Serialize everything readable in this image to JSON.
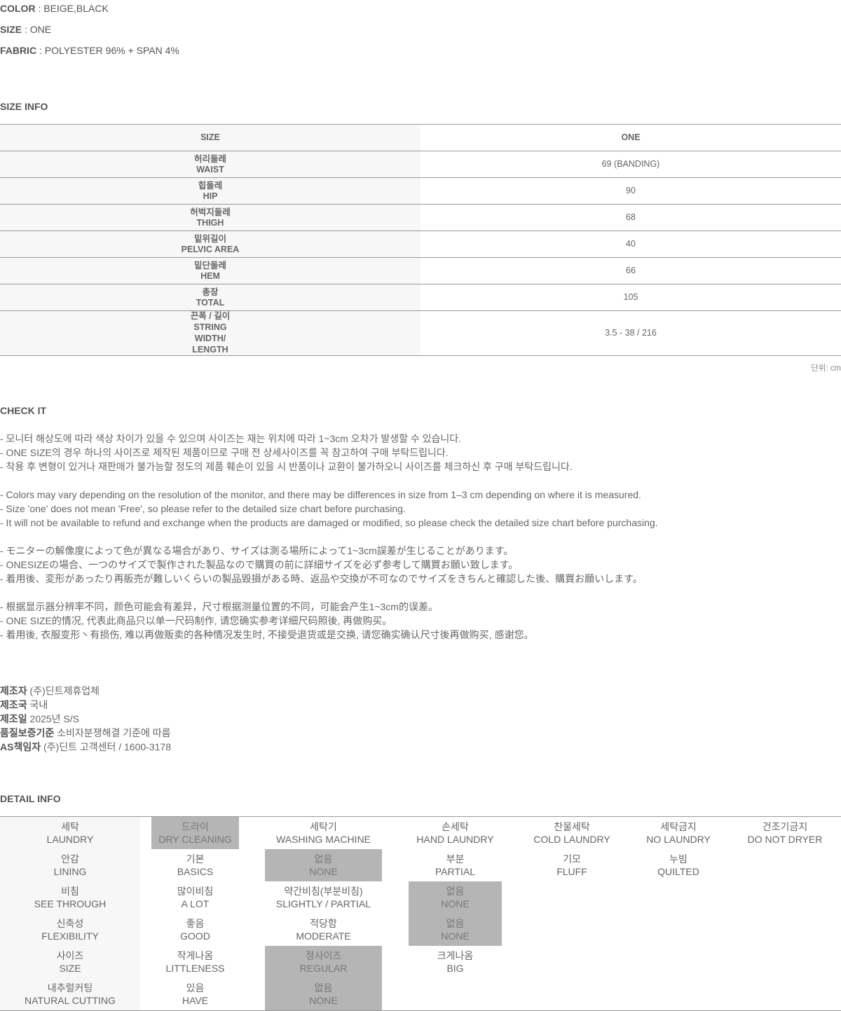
{
  "spec": [
    {
      "label": "COLOR",
      "value": " : BEIGE,BLACK"
    },
    {
      "label": "SIZE",
      "value": " : ONE"
    },
    {
      "label": "FABRIC",
      "value": " : POLYESTER 96% + SPAN 4%"
    }
  ],
  "size_info": {
    "title": "SIZE INFO",
    "header": [
      "SIZE",
      "ONE"
    ],
    "rows": [
      {
        "ko": "허리둘레",
        "en": "WAIST",
        "value": "69 (BANDING)"
      },
      {
        "ko": "힙둘레",
        "en": "HIP",
        "value": "90"
      },
      {
        "ko": "허벅지둘레",
        "en": "THIGH",
        "value": "68"
      },
      {
        "ko": "밑위길이",
        "en": "PELVIC AREA",
        "value": "40"
      },
      {
        "ko": "밑단둘레",
        "en": "HEM",
        "value": "66"
      },
      {
        "ko": "총장",
        "en": "TOTAL",
        "value": "105"
      },
      {
        "ko": "끈폭 / 길이",
        "en": "STRING WIDTH/ LENGTH",
        "value": "3.5 - 38 / 216"
      }
    ],
    "unit": "단위: cm"
  },
  "check_it": {
    "title": "CHECK IT",
    "groups": [
      [
        "- 모니터 해상도에 따라 색상 차이가 있을 수 있으며 사이즈는 재는 위치에 따라 1~3cm 오차가 발생할 수 있습니다.",
        "- ONE SIZE의 경우 하나의 사이즈로 제작된 제품이므로 구매 전 상세사이즈를 꼭 참고하여 구매 부탁드립니다.",
        "- 착용 후 변형이 있거나 재판매가 불가능할 정도의 제품 훼손이 있을 시 반품이나 교환이 불가하오니 사이즈를 체크하신 후 구매 부탁드립니다."
      ],
      [
        "- Colors may vary depending on the resolution of the monitor, and there may be differences in size from 1–3 cm depending on where it is measured.",
        "- Size 'one' does not mean 'Free', so please refer to the detailed size chart before purchasing.",
        "- It will not be available to refund and exchange when the products are damaged or modified, so please check the detailed size chart before purchasing."
      ],
      [
        "- モニターの解像度によって色が異なる場合があり、サイズは測る場所によって1~3cm誤差が生じることがあります。",
        "- ONESIZEの場合、一つのサイズで製作された製品なので購買の前に詳細サイズを必ず参考して購買お願い致します。",
        "- 着用後、変形があったり再販売が難しいくらいの製品毀損がある時、返品や交換が不可なのでサイズをきちんと確認した後、購買お願いします。"
      ],
      [
        "- 根据显示器分辨率不同，颜色可能会有差异，尺寸根据测量位置的不同，可能会产生1~3cm的误差。",
        "- ONE SIZE的情况, 代表此商品只以单一尺码制作, 请您确实参考详细尺码照後, 再做购买。",
        "- 着用後, 衣服变形丶有损伤, 难以再做贩卖的各种情况发生时, 不接受退货或是交换, 请您确实确认尺寸後再做购买, 感谢您。"
      ]
    ]
  },
  "maker": [
    {
      "label": "제조자",
      "value": " (주)딘트제휴업체"
    },
    {
      "label": "제조국",
      "value": " 국내"
    },
    {
      "label": "제조일",
      "value": " 2025년 S/S"
    },
    {
      "label": "품질보증기준",
      "value": " 소비자분쟁해결 기준에 따름"
    },
    {
      "label": "AS책임자",
      "value": " (주)딘트 고객센터 / 1600-3178"
    }
  ],
  "detail_info": {
    "title": "DETAIL INFO",
    "rows": [
      [
        {
          "ko": "세탁",
          "en": "LAUNDRY"
        },
        {
          "ko": "드라이",
          "en": "DRY CLEANING",
          "selected": true
        },
        {
          "ko": "세탁기",
          "en": "WASHING MACHINE"
        },
        {
          "ko": "손세탁",
          "en": "HAND LAUNDRY"
        },
        {
          "ko": "찬물세탁",
          "en": "COLD LAUNDRY"
        },
        {
          "ko": "세탁금지",
          "en": "NO LAUNDRY"
        },
        {
          "ko": "건조기금지",
          "en": "DO NOT DRYER"
        }
      ],
      [
        {
          "ko": "안감",
          "en": "LINING"
        },
        {
          "ko": "기본",
          "en": "BASICS"
        },
        {
          "ko": "없음",
          "en": "NONE",
          "selected": true
        },
        {
          "ko": "부분",
          "en": "PARTIAL"
        },
        {
          "ko": "기모",
          "en": "FLUFF"
        },
        {
          "ko": "누빔",
          "en": "QUILTED"
        }
      ],
      [
        {
          "ko": "비침",
          "en": "SEE THROUGH"
        },
        {
          "ko": "많이비침",
          "en": "A LOT"
        },
        {
          "ko": "약간비침(부분비침)",
          "en": "SLIGHTLY / PARTIAL"
        },
        {
          "ko": "없음",
          "en": "NONE",
          "selected": true
        }
      ],
      [
        {
          "ko": "신축성",
          "en": "FLEXIBILITY"
        },
        {
          "ko": "좋음",
          "en": "GOOD"
        },
        {
          "ko": "적당함",
          "en": "MODERATE"
        },
        {
          "ko": "없음",
          "en": "NONE",
          "selected": true
        }
      ],
      [
        {
          "ko": "사이즈",
          "en": "SIZE"
        },
        {
          "ko": "작게나옴",
          "en": "LITTLENESS"
        },
        {
          "ko": "정사이즈",
          "en": "REGULAR",
          "selected": true
        },
        {
          "ko": "크게나옴",
          "en": "BIG"
        }
      ],
      [
        {
          "ko": "내추럴커팅",
          "en": "NATURAL CUTTING"
        },
        {
          "ko": "있음",
          "en": "HAVE"
        },
        {
          "ko": "없음",
          "en": "NONE",
          "selected": true
        }
      ]
    ]
  }
}
